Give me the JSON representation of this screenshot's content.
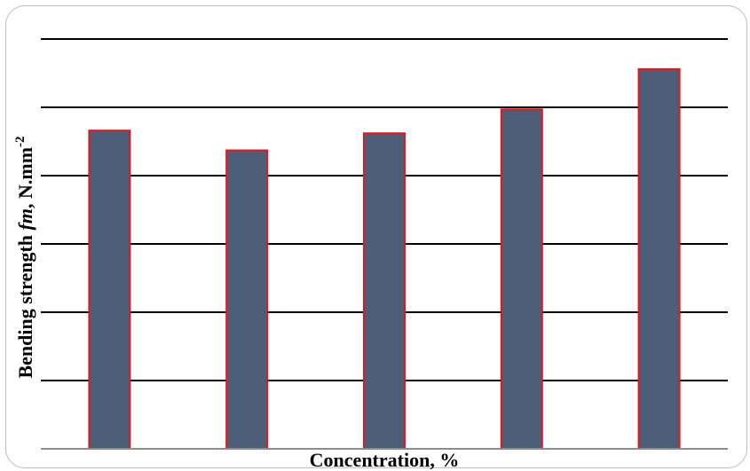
{
  "chart_data": {
    "type": "bar",
    "title": "",
    "xlabel": "Concentration, %",
    "ylabel": {
      "prefix": "Bending strength ",
      "italic": "fm",
      "suffix": ", N.mm",
      "superscript": "-2"
    },
    "categories": [
      "",
      "",
      "",
      "",
      ""
    ],
    "values": [
      4.66,
      4.37,
      4.62,
      4.97,
      5.56
    ],
    "ylim": [
      0,
      6
    ],
    "yticks": [
      0,
      1,
      2,
      3,
      4,
      5,
      6
    ],
    "grid": true,
    "legend": "none",
    "colors": {
      "bar_fill": "#4d5e78",
      "bar_edge": "#e8141c",
      "grid": "#000000",
      "axis": "#8c8c8c"
    }
  }
}
